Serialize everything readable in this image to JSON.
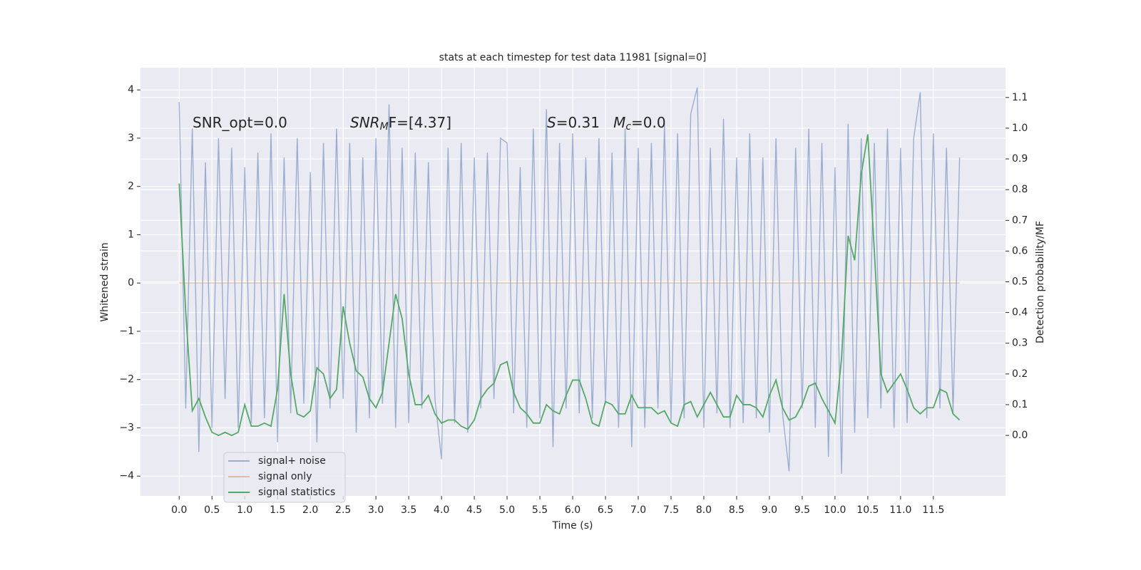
{
  "chart_data": {
    "type": "line",
    "title": "stats at each timestep for test data 11981 [signal=0]",
    "xlabel": "Time (s)",
    "ylabel": "Whitened strain",
    "y2label": "Detection probability/MF",
    "annotations": [
      {
        "parts": [
          {
            "text": "SNR_opt=0.0"
          }
        ]
      },
      {
        "parts": [
          {
            "text": "SNR",
            "italic": true
          },
          {
            "text": "M",
            "italic": true,
            "sub": true
          },
          {
            "text": "F=[4.37]"
          }
        ]
      },
      {
        "parts": [
          {
            "text": "S",
            "italic": true
          },
          {
            "text": "=0.31   "
          },
          {
            "text": "M",
            "italic": true
          },
          {
            "text": "c",
            "italic": true,
            "sub": true
          },
          {
            "text": "=0.0"
          }
        ]
      }
    ],
    "x": [
      0,
      0.1,
      0.2,
      0.3,
      0.4,
      0.5,
      0.6,
      0.7,
      0.8,
      0.9,
      1,
      1.1,
      1.2,
      1.3,
      1.4,
      1.5,
      1.6,
      1.7,
      1.8,
      1.9,
      2,
      2.1,
      2.2,
      2.3,
      2.4,
      2.5,
      2.6,
      2.7,
      2.8,
      2.9,
      3,
      3.1,
      3.2,
      3.3,
      3.4,
      3.5,
      3.6,
      3.7,
      3.8,
      3.9,
      4,
      4.1,
      4.2,
      4.3,
      4.4,
      4.5,
      4.6,
      4.7,
      4.8,
      4.9,
      5,
      5.1,
      5.2,
      5.3,
      5.4,
      5.5,
      5.6,
      5.7,
      5.8,
      5.9,
      6,
      6.1,
      6.2,
      6.3,
      6.4,
      6.5,
      6.6,
      6.7,
      6.8,
      6.9,
      7,
      7.1,
      7.2,
      7.3,
      7.4,
      7.5,
      7.6,
      7.7,
      7.8,
      7.9,
      8,
      8.1,
      8.2,
      8.3,
      8.4,
      8.5,
      8.6,
      8.7,
      8.8,
      8.9,
      9,
      9.1,
      9.2,
      9.3,
      9.4,
      9.5,
      9.6,
      9.7,
      9.8,
      9.9,
      10,
      10.1,
      10.2,
      10.3,
      10.4,
      10.5,
      10.6,
      10.7,
      10.8,
      10.9,
      11,
      11.1,
      11.2,
      11.3,
      11.4,
      11.5,
      11.6,
      11.7,
      11.8,
      11.9
    ],
    "series": [
      {
        "name": "signal+ noise",
        "color": "#4c72b0",
        "opacity": 0.5,
        "values": [
          3.75,
          -2.6,
          3.2,
          -3.5,
          2.5,
          -3.0,
          3.0,
          -2.4,
          2.8,
          -3.0,
          2.4,
          -2.9,
          2.7,
          -2.8,
          3.1,
          -3.3,
          2.6,
          -2.7,
          3.0,
          -2.5,
          2.3,
          -3.3,
          2.9,
          -2.6,
          3.2,
          -2.4,
          2.9,
          -3.1,
          2.6,
          -2.8,
          3.0,
          -2.5,
          3.7,
          -3.0,
          2.8,
          -2.9,
          2.7,
          -2.6,
          2.5,
          -2.4,
          -3.65,
          2.8,
          -2.9,
          2.9,
          -3.1,
          2.6,
          -2.6,
          2.7,
          -2.4,
          3.0,
          2.9,
          -2.7,
          2.4,
          -3.0,
          3.2,
          -2.8,
          3.6,
          -3.4,
          2.9,
          -2.6,
          3.1,
          -2.7,
          2.6,
          -2.8,
          3.0,
          -2.5,
          2.7,
          -3.0,
          3.2,
          -3.4,
          2.8,
          -3.0,
          2.9,
          -2.6,
          3.3,
          -2.9,
          3.1,
          -2.8,
          3.5,
          4.05,
          -3.0,
          2.8,
          -2.7,
          3.4,
          -3.0,
          2.6,
          -2.9,
          3.1,
          -2.8,
          2.6,
          -3.1,
          3.0,
          -2.7,
          -3.9,
          2.8,
          -2.6,
          3.2,
          -3.0,
          2.9,
          -3.6,
          2.4,
          -3.95,
          3.3,
          -3.1,
          3.0,
          -2.8,
          2.9,
          -2.6,
          3.2,
          -3.0,
          2.8,
          -2.9,
          3.0,
          3.95,
          -2.8,
          3.1,
          -2.6,
          2.8,
          -2.7,
          2.6
        ]
      },
      {
        "name": "signal only",
        "color": "#dd8452",
        "opacity": 0.5,
        "values": [
          0,
          0,
          0,
          0,
          0,
          0,
          0,
          0,
          0,
          0,
          0,
          0,
          0,
          0,
          0,
          0,
          0,
          0,
          0,
          0,
          0,
          0,
          0,
          0,
          0,
          0,
          0,
          0,
          0,
          0,
          0,
          0,
          0,
          0,
          0,
          0,
          0,
          0,
          0,
          0,
          0,
          0,
          0,
          0,
          0,
          0,
          0,
          0,
          0,
          0,
          0,
          0,
          0,
          0,
          0,
          0,
          0,
          0,
          0,
          0,
          0,
          0,
          0,
          0,
          0,
          0,
          0,
          0,
          0,
          0,
          0,
          0,
          0,
          0,
          0,
          0,
          0,
          0,
          0,
          0,
          0,
          0,
          0,
          0,
          0,
          0,
          0,
          0,
          0,
          0,
          0,
          0,
          0,
          0,
          0,
          0,
          0,
          0,
          0,
          0,
          0,
          0,
          0,
          0,
          0,
          0,
          0,
          0,
          0,
          0,
          0,
          0,
          0,
          0,
          0,
          0,
          0,
          0,
          0,
          0
        ]
      },
      {
        "name": "signal statistics",
        "color": "#55a868",
        "opacity": 1,
        "axis": "y2",
        "values": [
          0.82,
          0.4,
          0.08,
          0.12,
          0.06,
          0.01,
          0.0,
          0.01,
          0.0,
          0.01,
          0.1,
          0.03,
          0.03,
          0.04,
          0.03,
          0.15,
          0.46,
          0.2,
          0.07,
          0.06,
          0.08,
          0.22,
          0.2,
          0.12,
          0.15,
          0.42,
          0.3,
          0.21,
          0.19,
          0.12,
          0.09,
          0.14,
          0.3,
          0.46,
          0.38,
          0.2,
          0.1,
          0.1,
          0.13,
          0.07,
          0.04,
          0.05,
          0.05,
          0.03,
          0.02,
          0.05,
          0.12,
          0.15,
          0.17,
          0.23,
          0.24,
          0.14,
          0.09,
          0.07,
          0.04,
          0.04,
          0.1,
          0.08,
          0.07,
          0.13,
          0.18,
          0.18,
          0.12,
          0.04,
          0.03,
          0.11,
          0.1,
          0.07,
          0.07,
          0.13,
          0.09,
          0.09,
          0.09,
          0.07,
          0.08,
          0.04,
          0.03,
          0.1,
          0.11,
          0.06,
          0.1,
          0.14,
          0.1,
          0.06,
          0.06,
          0.13,
          0.1,
          0.1,
          0.09,
          0.06,
          0.13,
          0.18,
          0.09,
          0.05,
          0.06,
          0.1,
          0.16,
          0.17,
          0.12,
          0.08,
          0.04,
          0.25,
          0.65,
          0.57,
          0.85,
          0.98,
          0.6,
          0.2,
          0.14,
          0.17,
          0.2,
          0.15,
          0.09,
          0.07,
          0.09,
          0.09,
          0.15,
          0.14,
          0.07,
          0.05
        ]
      }
    ],
    "xlim": [
      -0.59,
      12.6
    ],
    "ylim": [
      -4.41,
      4.46
    ],
    "y2lim": [
      -0.197,
      1.197
    ],
    "xticks": [
      {
        "value": 0,
        "label": "0.0"
      },
      0.5,
      {
        "value": 1,
        "label": "1.0"
      },
      1.5,
      {
        "value": 2,
        "label": "2.0"
      },
      2.5,
      {
        "value": 3,
        "label": "3.0"
      },
      3.5,
      {
        "value": 4,
        "label": "4.0"
      },
      4.5,
      {
        "value": 5,
        "label": "5.0"
      },
      5.5,
      {
        "value": 6,
        "label": "6.0"
      },
      6.5,
      {
        "value": 7,
        "label": "7.0"
      },
      7.5,
      {
        "value": 8,
        "label": "8.0"
      },
      8.5,
      {
        "value": 9,
        "label": "9.0"
      },
      9.5,
      {
        "value": 10,
        "label": "10.0"
      },
      10.5,
      {
        "value": 11,
        "label": "11.0"
      },
      11.5
    ],
    "yticks": [
      {
        "value": -4,
        "label": "−4"
      },
      {
        "value": -3,
        "label": "−3"
      },
      {
        "value": -2,
        "label": "−2"
      },
      {
        "value": -1,
        "label": "−1"
      },
      0,
      1,
      2,
      3,
      4
    ],
    "y2ticks": [
      {
        "value": 0,
        "label": "0.0"
      },
      0.1,
      0.2,
      0.3,
      0.4,
      0.5,
      0.6,
      0.7,
      0.8,
      0.9,
      {
        "value": 1,
        "label": "1.0"
      },
      1.1
    ],
    "grid": true,
    "legend": "lower left"
  }
}
